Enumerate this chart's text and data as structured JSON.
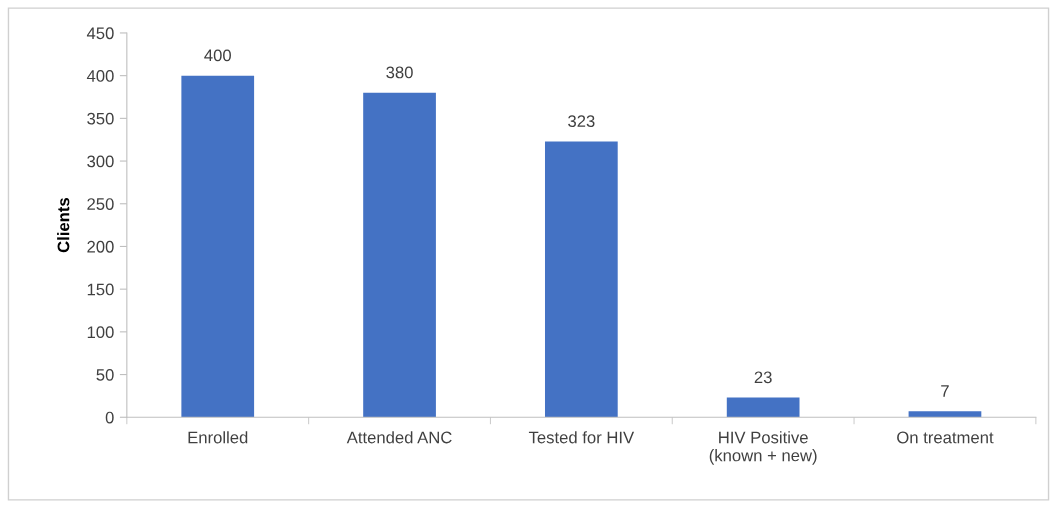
{
  "chart_data": {
    "type": "bar",
    "ylabel": "Clients",
    "categories": [
      "Enrolled",
      "Attended ANC",
      "Tested for HIV",
      "HIV Positive\n(known + new)",
      "On treatment"
    ],
    "values": [
      400,
      380,
      323,
      23,
      7
    ],
    "color": "#4472c4",
    "ylim": [
      0,
      450
    ],
    "yticks": [
      0,
      50,
      100,
      150,
      200,
      250,
      300,
      350,
      400,
      450
    ],
    "grid": false,
    "legend": false,
    "data_labels": true
  }
}
